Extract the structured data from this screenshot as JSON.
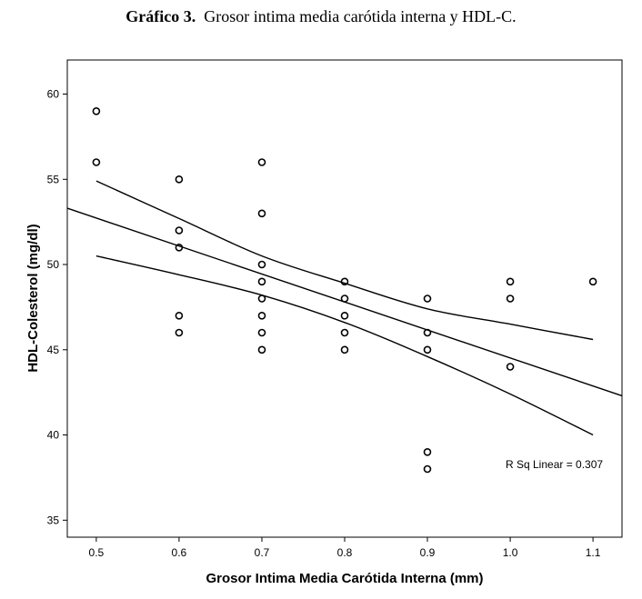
{
  "figure": {
    "title_prefix": "Gráfico 3.",
    "title_text": "Grosor intima media carótida interna y HDL-C."
  },
  "chart_data": {
    "type": "scatter",
    "title": "Gráfico 3. Grosor intima media carótida interna y HDL-C.",
    "xlabel": "Grosor Intima Media Carótida Interna (mm)",
    "ylabel": "HDL-Colesterol (mg/dl)",
    "xlim": [
      0.465,
      1.135
    ],
    "ylim": [
      34,
      62
    ],
    "x_ticks": [
      0.5,
      0.6,
      0.7,
      0.8,
      0.9,
      1.0,
      1.1
    ],
    "x_tick_labels": [
      "0.5",
      "0.6",
      "0.7",
      "0.8",
      "0.9",
      "1.0",
      "1.1"
    ],
    "y_ticks": [
      35,
      40,
      45,
      50,
      55,
      60
    ],
    "y_tick_labels": [
      "35",
      "40",
      "45",
      "50",
      "55",
      "60"
    ],
    "grid": false,
    "points": [
      [
        0.5,
        59
      ],
      [
        0.5,
        56
      ],
      [
        0.6,
        55
      ],
      [
        0.6,
        52
      ],
      [
        0.6,
        51
      ],
      [
        0.6,
        47
      ],
      [
        0.6,
        46
      ],
      [
        0.7,
        56
      ],
      [
        0.7,
        53
      ],
      [
        0.7,
        50
      ],
      [
        0.7,
        49
      ],
      [
        0.7,
        48
      ],
      [
        0.7,
        47
      ],
      [
        0.7,
        46
      ],
      [
        0.7,
        45
      ],
      [
        0.8,
        49
      ],
      [
        0.8,
        48
      ],
      [
        0.8,
        47
      ],
      [
        0.8,
        46
      ],
      [
        0.8,
        45
      ],
      [
        0.9,
        48
      ],
      [
        0.9,
        46
      ],
      [
        0.9,
        45
      ],
      [
        0.9,
        39
      ],
      [
        0.9,
        38
      ],
      [
        1.0,
        49
      ],
      [
        1.0,
        48
      ],
      [
        1.0,
        44
      ],
      [
        1.1,
        49
      ]
    ],
    "fit_line": {
      "x": [
        0.465,
        1.135
      ],
      "y": [
        53.3,
        42.3
      ]
    },
    "ci_upper": {
      "x": [
        0.5,
        0.6,
        0.7,
        0.8,
        0.9,
        1.0,
        1.1
      ],
      "y": [
        54.9,
        52.7,
        50.5,
        48.9,
        47.4,
        46.5,
        45.6
      ]
    },
    "ci_lower": {
      "x": [
        0.5,
        0.6,
        0.7,
        0.8,
        0.9,
        1.0,
        1.1
      ],
      "y": [
        50.5,
        49.4,
        48.2,
        46.6,
        44.6,
        42.4,
        40.0
      ]
    },
    "annotation": "R Sq Linear = 0.307",
    "colors": {
      "marker": "#000000",
      "line": "#000000",
      "frame": "#000000",
      "background": "#ffffff"
    }
  }
}
